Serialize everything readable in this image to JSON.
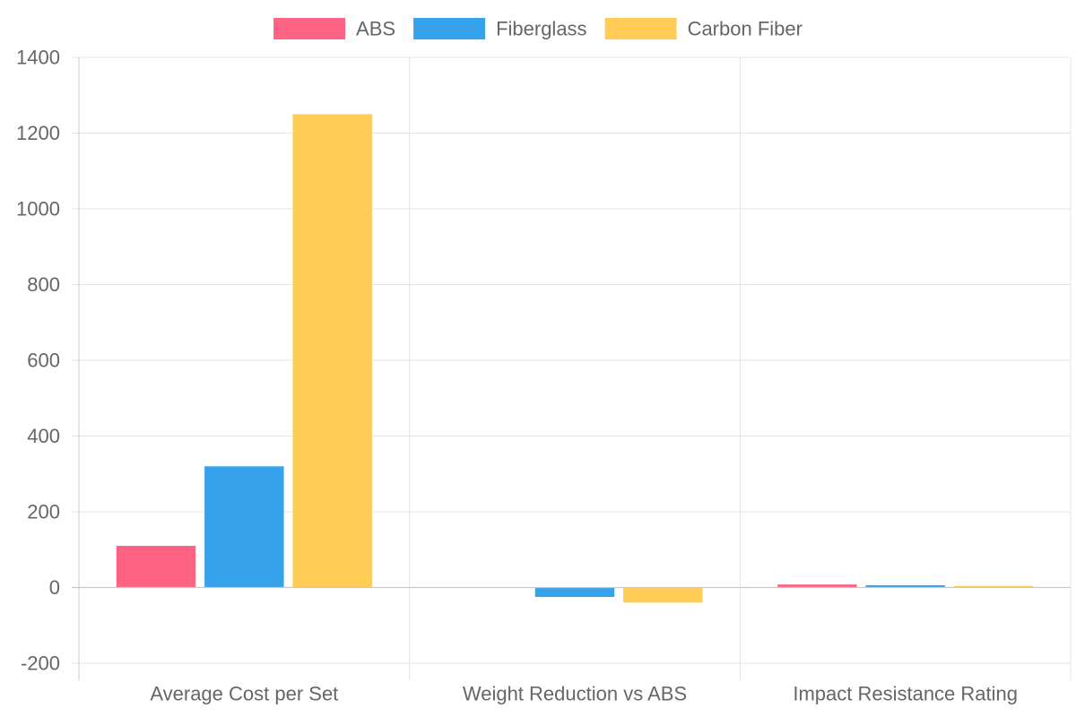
{
  "chart_data": {
    "type": "bar",
    "categories": [
      "Average Cost per Set",
      "Weight Reduction vs ABS",
      "Impact Resistance Rating"
    ],
    "series": [
      {
        "name": "ABS",
        "values": [
          110,
          0,
          8
        ],
        "color": "#ff6384"
      },
      {
        "name": "Fiberglass",
        "values": [
          320,
          -25,
          6
        ],
        "color": "#36a2eb"
      },
      {
        "name": "Carbon Fiber",
        "values": [
          1250,
          -40,
          4
        ],
        "color": "#ffcd56"
      }
    ],
    "title": "",
    "xlabel": "",
    "ylabel": "",
    "ylim": [
      -200,
      1400
    ],
    "y_ticks": [
      -200,
      0,
      200,
      400,
      600,
      800,
      1000,
      1200,
      1400
    ],
    "y_tick_labels": [
      "-200",
      "0",
      "200",
      "400",
      "600",
      "800",
      "1000",
      "1200",
      "1400"
    ],
    "grid": true,
    "legend_position": "top"
  }
}
